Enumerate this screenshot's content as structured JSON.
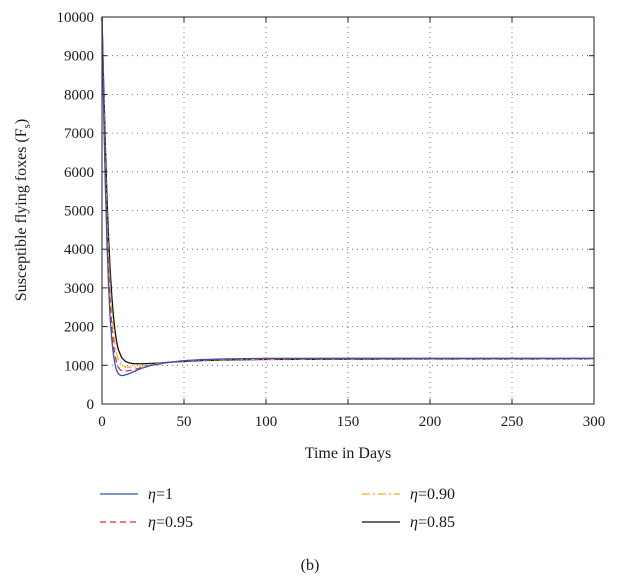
{
  "chart_data": {
    "type": "line",
    "xlabel": "Time in Days",
    "ylabel": "Susceptible flying foxes (F",
    "ylabel_subscript": "s",
    "ylabel_close": ")",
    "xlim": [
      0,
      300
    ],
    "ylim": [
      0,
      10000
    ],
    "xticks": [
      0,
      50,
      100,
      150,
      200,
      250,
      300
    ],
    "yticks": [
      0,
      1000,
      2000,
      3000,
      4000,
      5000,
      6000,
      7000,
      8000,
      9000,
      10000
    ],
    "grid": "dotted",
    "legend_position": "below",
    "caption": "(b)",
    "series": [
      {
        "name_symbol": "η",
        "name_value": "=1",
        "color": "#3050c0",
        "dash": "",
        "points": [
          [
            0,
            10000
          ],
          [
            1,
            7600
          ],
          [
            2,
            5700
          ],
          [
            3,
            4200
          ],
          [
            4,
            3050
          ],
          [
            5,
            2200
          ],
          [
            6,
            1650
          ],
          [
            7,
            1270
          ],
          [
            8,
            1010
          ],
          [
            9,
            860
          ],
          [
            10,
            780
          ],
          [
            11,
            745
          ],
          [
            12,
            735
          ],
          [
            13,
            738
          ],
          [
            14,
            748
          ],
          [
            16,
            775
          ],
          [
            18,
            810
          ],
          [
            20,
            850
          ],
          [
            25,
            935
          ],
          [
            30,
            1000
          ],
          [
            40,
            1075
          ],
          [
            50,
            1120
          ],
          [
            60,
            1145
          ],
          [
            70,
            1160
          ],
          [
            80,
            1170
          ],
          [
            100,
            1178
          ],
          [
            150,
            1180
          ],
          [
            200,
            1180
          ],
          [
            250,
            1180
          ],
          [
            300,
            1180
          ]
        ]
      },
      {
        "name_symbol": "η",
        "name_value": "=0.95",
        "color": "#e0282a",
        "dash": "6,4",
        "points": [
          [
            0,
            10000
          ],
          [
            1,
            7800
          ],
          [
            2,
            6000
          ],
          [
            3,
            4550
          ],
          [
            4,
            3450
          ],
          [
            5,
            2600
          ],
          [
            6,
            1980
          ],
          [
            7,
            1540
          ],
          [
            8,
            1240
          ],
          [
            9,
            1060
          ],
          [
            10,
            950
          ],
          [
            11,
            890
          ],
          [
            12,
            860
          ],
          [
            14,
            850
          ],
          [
            16,
            860
          ],
          [
            20,
            895
          ],
          [
            25,
            950
          ],
          [
            30,
            1000
          ],
          [
            40,
            1070
          ],
          [
            50,
            1110
          ],
          [
            60,
            1135
          ],
          [
            80,
            1155
          ],
          [
            100,
            1162
          ],
          [
            150,
            1165
          ],
          [
            200,
            1168
          ],
          [
            300,
            1170
          ]
        ]
      },
      {
        "name_symbol": "η",
        "name_value": "=0.90",
        "color": "#f2b01e",
        "dash": "8,3,2,3",
        "points": [
          [
            0,
            10000
          ],
          [
            1,
            8000
          ],
          [
            2,
            6300
          ],
          [
            3,
            4900
          ],
          [
            4,
            3800
          ],
          [
            5,
            2980
          ],
          [
            6,
            2340
          ],
          [
            7,
            1860
          ],
          [
            8,
            1520
          ],
          [
            9,
            1290
          ],
          [
            10,
            1140
          ],
          [
            12,
            1000
          ],
          [
            14,
            960
          ],
          [
            16,
            950
          ],
          [
            20,
            960
          ],
          [
            25,
            990
          ],
          [
            30,
            1025
          ],
          [
            40,
            1075
          ],
          [
            50,
            1110
          ],
          [
            60,
            1130
          ],
          [
            80,
            1150
          ],
          [
            100,
            1158
          ],
          [
            150,
            1163
          ],
          [
            200,
            1165
          ],
          [
            300,
            1168
          ]
        ]
      },
      {
        "name_symbol": "η",
        "name_value": "=0.85",
        "color": "#111111",
        "dash": "",
        "points": [
          [
            0,
            10000
          ],
          [
            1,
            8300
          ],
          [
            2,
            6750
          ],
          [
            3,
            5400
          ],
          [
            4,
            4300
          ],
          [
            5,
            3450
          ],
          [
            6,
            2780
          ],
          [
            7,
            2260
          ],
          [
            8,
            1870
          ],
          [
            9,
            1590
          ],
          [
            10,
            1400
          ],
          [
            12,
            1200
          ],
          [
            14,
            1110
          ],
          [
            16,
            1070
          ],
          [
            18,
            1050
          ],
          [
            20,
            1040
          ],
          [
            25,
            1040
          ],
          [
            30,
            1050
          ],
          [
            35,
            1060
          ],
          [
            40,
            1075
          ],
          [
            50,
            1100
          ],
          [
            60,
            1120
          ],
          [
            80,
            1140
          ],
          [
            100,
            1150
          ],
          [
            150,
            1158
          ],
          [
            200,
            1162
          ],
          [
            300,
            1165
          ]
        ]
      }
    ]
  }
}
